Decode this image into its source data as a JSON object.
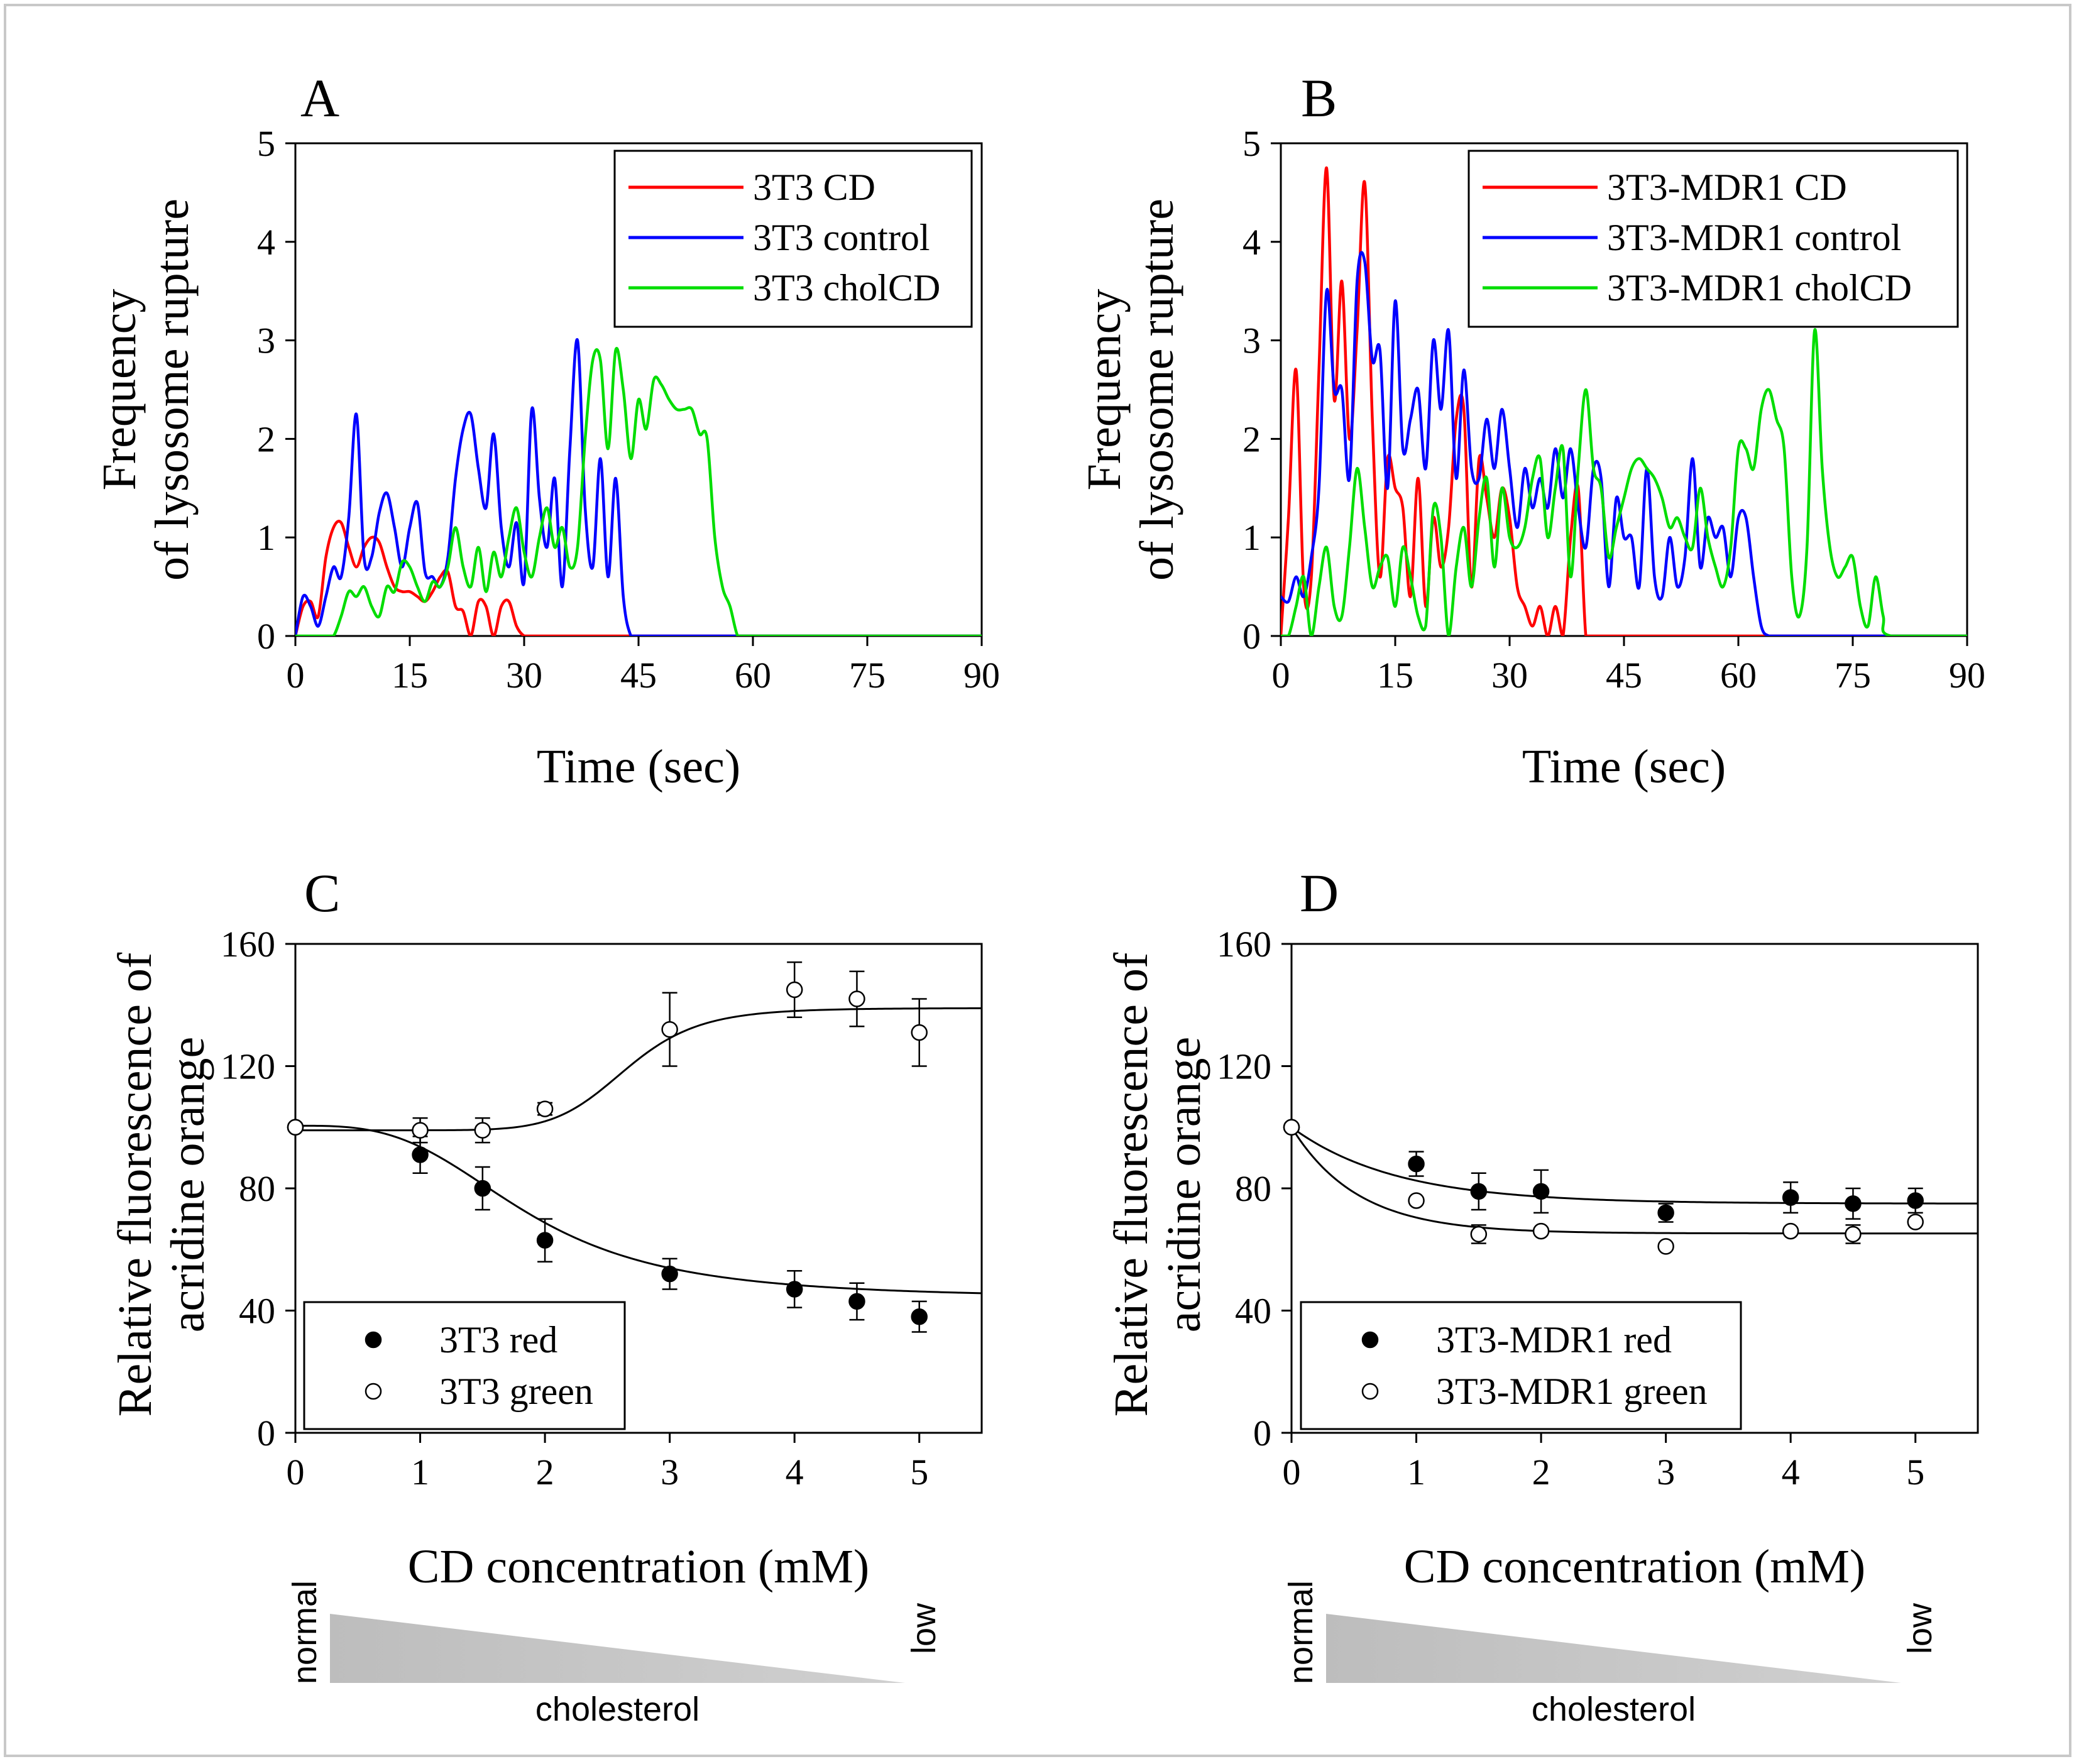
{
  "chart_data": [
    {
      "panel": "A",
      "type": "line",
      "xlabel": "Time (sec)",
      "ylabel": [
        "Frequency",
        "of lysosome rupture"
      ],
      "xlim": [
        0,
        90
      ],
      "ylim": [
        0,
        5
      ],
      "xticks": [
        0,
        15,
        30,
        45,
        60,
        75,
        90
      ],
      "yticks": [
        0,
        1,
        2,
        3,
        4,
        5
      ],
      "legend_position": "top-right",
      "series": [
        {
          "name": "3T3 CD",
          "color": "#ff0000",
          "x": [
            0,
            1,
            2,
            3,
            4,
            5,
            6,
            7,
            8,
            9,
            10,
            11,
            12,
            13,
            14,
            15,
            16,
            17,
            18,
            19,
            20,
            21,
            22,
            23,
            24,
            25,
            26,
            27,
            28,
            29,
            30,
            31,
            32,
            33,
            34,
            35,
            36,
            37,
            38,
            39,
            40,
            41,
            42,
            43,
            44,
            45,
            50,
            60,
            70,
            80,
            90
          ],
          "y": [
            0,
            0.3,
            0.35,
            0.2,
            0.8,
            1.1,
            1.15,
            0.9,
            0.7,
            0.9,
            1.0,
            0.95,
            0.7,
            0.5,
            0.45,
            0.45,
            0.4,
            0.35,
            0.45,
            0.6,
            0.65,
            0.3,
            0.25,
            0,
            0.35,
            0.3,
            0,
            0.3,
            0.35,
            0.1,
            0,
            0,
            0,
            0,
            0,
            0,
            0,
            0,
            0,
            0,
            0,
            0,
            0,
            0,
            0,
            0,
            0,
            0,
            0,
            0,
            0
          ]
        },
        {
          "name": "3T3 control",
          "color": "#0000ff",
          "x": [
            0,
            1,
            2,
            3,
            4,
            5,
            6,
            7,
            8,
            9,
            10,
            11,
            12,
            13,
            14,
            15,
            16,
            17,
            18,
            19,
            20,
            21,
            22,
            23,
            24,
            25,
            26,
            27,
            28,
            29,
            30,
            31,
            32,
            33,
            34,
            35,
            36,
            37,
            38,
            39,
            40,
            41,
            42,
            43,
            44,
            45,
            50,
            60,
            70,
            80,
            90
          ],
          "y": [
            0,
            0.4,
            0.3,
            0.1,
            0.4,
            0.7,
            0.6,
            1.2,
            2.25,
            0.8,
            0.8,
            1.25,
            1.45,
            1.1,
            0.7,
            1.1,
            1.35,
            0.65,
            0.6,
            0.5,
            0.8,
            1.6,
            2.1,
            2.25,
            1.7,
            1.3,
            2.05,
            1.1,
            0.7,
            1.15,
            0.55,
            2.3,
            1.4,
            0.9,
            1.6,
            0.5,
            1.9,
            3.0,
            1.3,
            0.7,
            1.8,
            0.6,
            1.6,
            0.4,
            0,
            0,
            0,
            0,
            0,
            0,
            0
          ]
        },
        {
          "name": "3T3 cholCD",
          "color": "#00dd00",
          "x": [
            0,
            1,
            2,
            3,
            4,
            5,
            6,
            7,
            8,
            9,
            10,
            11,
            12,
            13,
            14,
            15,
            16,
            17,
            18,
            19,
            20,
            21,
            22,
            23,
            24,
            25,
            26,
            27,
            28,
            29,
            30,
            31,
            32,
            33,
            34,
            35,
            36,
            37,
            38,
            39,
            40,
            41,
            42,
            43,
            44,
            45,
            46,
            47,
            48,
            49,
            50,
            51,
            52,
            53,
            54,
            55,
            56,
            57,
            58,
            59,
            60,
            70,
            80,
            90
          ],
          "y": [
            0,
            0,
            0,
            0,
            0,
            0,
            0.2,
            0.45,
            0.4,
            0.5,
            0.3,
            0.2,
            0.5,
            0.45,
            0.75,
            0.7,
            0.5,
            0.35,
            0.55,
            0.5,
            0.7,
            1.1,
            0.7,
            0.5,
            0.9,
            0.45,
            0.85,
            0.6,
            1.0,
            1.3,
            0.85,
            0.6,
            1.0,
            1.3,
            0.9,
            1.1,
            0.7,
            0.9,
            2.0,
            2.8,
            2.8,
            1.9,
            2.9,
            2.5,
            1.8,
            2.4,
            2.1,
            2.6,
            2.55,
            2.4,
            2.3,
            2.3,
            2.3,
            2.05,
            2.0,
            1.0,
            0.5,
            0.3,
            0,
            0,
            0,
            0,
            0,
            0
          ]
        }
      ]
    },
    {
      "panel": "B",
      "type": "line",
      "xlabel": "Time (sec)",
      "ylabel": [
        "Frequency",
        "of lysosome rupture"
      ],
      "xlim": [
        0,
        90
      ],
      "ylim": [
        0,
        5
      ],
      "xticks": [
        0,
        15,
        30,
        45,
        60,
        75,
        90
      ],
      "yticks": [
        0,
        1,
        2,
        3,
        4,
        5
      ],
      "legend_position": "top-right",
      "series": [
        {
          "name": "3T3-MDR1 CD",
          "color": "#ff0000",
          "x": [
            0,
            1,
            2,
            3,
            4,
            5,
            6,
            7,
            8,
            9,
            10,
            11,
            12,
            13,
            14,
            15,
            16,
            17,
            18,
            19,
            20,
            21,
            22,
            23,
            24,
            25,
            26,
            27,
            28,
            29,
            30,
            31,
            32,
            33,
            34,
            35,
            36,
            37,
            38,
            39,
            40,
            41,
            45,
            60,
            75,
            90
          ],
          "y": [
            0,
            1.2,
            2.7,
            0.5,
            0.6,
            2.7,
            4.75,
            2.4,
            3.6,
            2.0,
            3.1,
            4.6,
            2.2,
            0.6,
            1.8,
            1.5,
            1.3,
            0.4,
            1.6,
            0.3,
            1.2,
            0.7,
            1.1,
            2.2,
            2.3,
            0.5,
            1.8,
            1.4,
            1.0,
            1.5,
            1.2,
            0.5,
            0.3,
            0.1,
            0.3,
            0,
            0.3,
            0,
            1.0,
            1.5,
            0,
            0,
            0,
            0,
            0,
            0
          ]
        },
        {
          "name": "3T3-MDR1 control",
          "color": "#0000ff",
          "x": [
            0,
            1,
            2,
            3,
            4,
            5,
            6,
            7,
            8,
            9,
            10,
            11,
            12,
            13,
            14,
            15,
            16,
            17,
            18,
            19,
            20,
            21,
            22,
            23,
            24,
            25,
            26,
            27,
            28,
            29,
            30,
            31,
            32,
            33,
            34,
            35,
            36,
            37,
            38,
            39,
            40,
            41,
            42,
            43,
            44,
            45,
            46,
            47,
            48,
            49,
            50,
            51,
            52,
            53,
            54,
            55,
            56,
            57,
            58,
            59,
            60,
            61,
            62,
            63,
            64,
            65,
            70,
            80,
            90
          ],
          "y": [
            0.4,
            0.35,
            0.6,
            0.4,
            0.8,
            1.5,
            3.5,
            2.5,
            2.5,
            1.6,
            3.6,
            3.8,
            2.8,
            2.9,
            1.5,
            3.4,
            1.9,
            2.2,
            2.5,
            1.7,
            3.0,
            2.3,
            3.1,
            1.6,
            2.7,
            1.7,
            1.6,
            2.2,
            1.7,
            2.3,
            1.7,
            1.1,
            1.7,
            1.3,
            1.6,
            1.3,
            1.9,
            1.4,
            1.9,
            1.3,
            0.9,
            1.7,
            1.6,
            0.5,
            1.4,
            1.0,
            1.0,
            0.5,
            1.7,
            0.6,
            0.4,
            1.0,
            0.5,
            0.8,
            1.8,
            0.7,
            1.2,
            1.0,
            1.1,
            0.6,
            1.2,
            1.2,
            0.6,
            0.1,
            0,
            0,
            0,
            0,
            0
          ]
        },
        {
          "name": "3T3-MDR1 cholCD",
          "color": "#00dd00",
          "x": [
            0,
            1,
            2,
            3,
            4,
            5,
            6,
            7,
            8,
            9,
            10,
            11,
            12,
            13,
            14,
            15,
            16,
            17,
            18,
            19,
            20,
            21,
            22,
            23,
            24,
            25,
            26,
            27,
            28,
            29,
            30,
            31,
            32,
            33,
            34,
            35,
            36,
            37,
            38,
            39,
            40,
            41,
            42,
            43,
            44,
            45,
            46,
            47,
            48,
            49,
            50,
            51,
            52,
            53,
            54,
            55,
            56,
            57,
            58,
            59,
            60,
            61,
            62,
            63,
            64,
            65,
            66,
            67,
            68,
            69,
            70,
            71,
            72,
            73,
            74,
            75,
            76,
            77,
            78,
            79,
            80,
            90
          ],
          "y": [
            0,
            0,
            0.3,
            0.6,
            0,
            0.5,
            0.9,
            0.3,
            0.2,
            0.9,
            1.7,
            1.1,
            0.5,
            0.7,
            0.8,
            0.3,
            0.9,
            0.6,
            0.2,
            0.1,
            1.3,
            1.0,
            0,
            0.7,
            1.1,
            0.5,
            1.2,
            1.6,
            0.7,
            1.5,
            1.0,
            0.9,
            1.1,
            1.6,
            1.8,
            1.0,
            1.5,
            1.9,
            0.6,
            1.7,
            2.5,
            1.7,
            1.5,
            0.8,
            1.1,
            1.4,
            1.7,
            1.8,
            1.7,
            1.6,
            1.4,
            1.1,
            1.2,
            1.0,
            0.9,
            1.5,
            1.0,
            0.7,
            0.5,
            0.9,
            1.9,
            1.9,
            1.7,
            2.3,
            2.5,
            2.2,
            1.9,
            0.6,
            0.2,
            0.9,
            3.1,
            1.7,
            0.9,
            0.6,
            0.7,
            0.8,
            0.3,
            0.1,
            0.6,
            0.2,
            0,
            0
          ]
        }
      ]
    },
    {
      "panel": "C",
      "type": "scatter",
      "xlabel": "CD concentration (mM)",
      "ylabel": [
        "Relative fluorescence of",
        "acridine orange"
      ],
      "xlim": [
        0,
        5.5
      ],
      "ylim": [
        0,
        160
      ],
      "xticks": [
        0,
        1,
        2,
        3,
        4,
        5
      ],
      "yticks": [
        0,
        40,
        80,
        120,
        160
      ],
      "legend_position": "bottom-left",
      "series": [
        {
          "name": "3T3 red",
          "marker": "filled-circle",
          "x": [
            0,
            1,
            1.5,
            2,
            3,
            4,
            4.5,
            5
          ],
          "y": [
            100,
            91,
            80,
            63,
            52,
            47,
            43,
            38
          ],
          "err": [
            0,
            6,
            7,
            7,
            5,
            6,
            6,
            5
          ],
          "fit": "sigmoid-decreasing"
        },
        {
          "name": "3T3 green",
          "marker": "open-circle",
          "x": [
            0,
            1,
            1.5,
            2,
            3,
            4,
            4.5,
            5
          ],
          "y": [
            100,
            99,
            99,
            106,
            132,
            145,
            142,
            131
          ],
          "err": [
            0,
            4,
            4,
            2,
            12,
            9,
            9,
            11
          ],
          "fit": "sigmoid-increasing"
        }
      ],
      "gradient": {
        "start_label": "normal",
        "end_label": "low",
        "axis_label": "cholesterol"
      }
    },
    {
      "panel": "D",
      "type": "scatter",
      "xlabel": "CD concentration (mM)",
      "ylabel": [
        "Relative fluorescence of",
        "acridine orange"
      ],
      "xlim": [
        0,
        5.5
      ],
      "ylim": [
        0,
        160
      ],
      "xticks": [
        0,
        1,
        2,
        3,
        4,
        5
      ],
      "yticks": [
        0,
        40,
        80,
        120,
        160
      ],
      "legend_position": "bottom-left",
      "series": [
        {
          "name": "3T3-MDR1 red",
          "marker": "filled-circle",
          "x": [
            0,
            1,
            1.5,
            2,
            3,
            4,
            4.5,
            5
          ],
          "y": [
            100,
            88,
            79,
            79,
            72,
            77,
            75,
            76
          ],
          "err": [
            0,
            4,
            6,
            7,
            3,
            5,
            5,
            4
          ],
          "fit": "exp-decay"
        },
        {
          "name": "3T3-MDR1 green",
          "marker": "open-circle",
          "x": [
            0,
            1,
            1.5,
            2,
            3,
            4,
            4.5,
            5
          ],
          "y": [
            100,
            76,
            65,
            66,
            61,
            66,
            65,
            69
          ],
          "err": [
            0,
            0,
            3,
            0,
            0,
            0,
            3,
            0
          ],
          "fit": "exp-decay"
        }
      ],
      "gradient": {
        "start_label": "normal",
        "end_label": "low",
        "axis_label": "cholesterol"
      }
    }
  ]
}
